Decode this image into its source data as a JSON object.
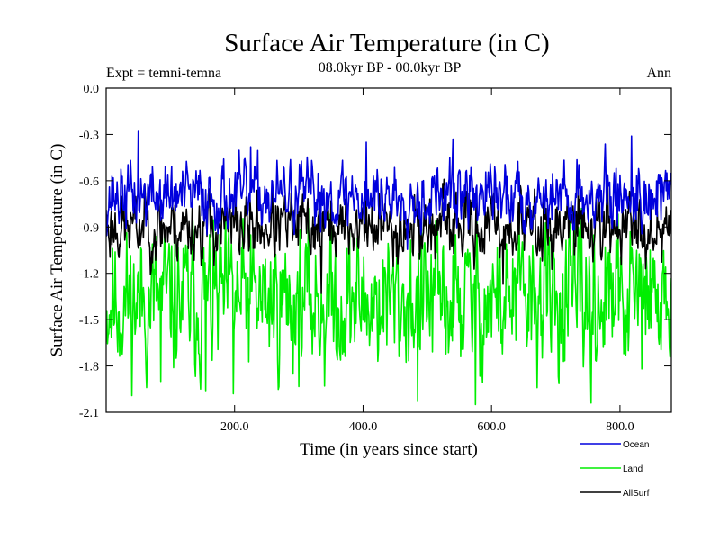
{
  "chart_data": {
    "type": "line",
    "title": "Surface Air Temperature (in C)",
    "subtitle": "08.0kyr BP - 00.0kyr BP",
    "left_label": "Expt = temni-temna",
    "right_label": "Ann",
    "xlabel": "Time (in years since start)",
    "ylabel": "Surface Air Temperature (in C)",
    "xlim": [
      0,
      880
    ],
    "ylim": [
      -2.1,
      0.0
    ],
    "x_ticks": [
      200,
      400,
      600,
      800
    ],
    "x_tick_labels": [
      "200.0",
      "400.0",
      "600.0",
      "800.0"
    ],
    "y_ticks": [
      0.0,
      -0.3,
      -0.6,
      -0.9,
      -1.2,
      -1.5,
      -1.8,
      -2.1
    ],
    "y_tick_labels": [
      "0.0",
      "-0.3",
      "-0.6",
      "-0.9",
      "-1.2",
      "-1.5",
      "-1.8",
      "-2.1"
    ],
    "legend_position": "below-right",
    "series": [
      {
        "name": "Land",
        "color": "#00ee00",
        "mean": -1.38,
        "amplitude": 0.22,
        "min": -2.06,
        "max": -0.78,
        "seed": 11,
        "notable_points": [
          [
            85,
            -1.9
          ],
          [
            155,
            -1.96
          ],
          [
            198,
            -1.98
          ],
          [
            340,
            -1.93
          ],
          [
            485,
            -2.03
          ],
          [
            575,
            -2.05
          ],
          [
            755,
            -2.04
          ]
        ]
      },
      {
        "name": "AllSurf",
        "color": "#000000",
        "mean": -0.9,
        "amplitude": 0.1,
        "min": -1.35,
        "max": -0.55,
        "seed": 23,
        "notable_points": [
          [
            60,
            -0.62
          ],
          [
            335,
            -1.33
          ],
          [
            405,
            -0.58
          ],
          [
            618,
            -1.27
          ],
          [
            735,
            -0.64
          ]
        ]
      },
      {
        "name": "Ocean",
        "color": "#0000dd",
        "mean": -0.7,
        "amplitude": 0.1,
        "min": -1.1,
        "max": -0.27,
        "seed": 37,
        "notable_points": [
          [
            50,
            -0.28
          ],
          [
            225,
            -0.38
          ],
          [
            405,
            -0.35
          ],
          [
            540,
            -0.33
          ],
          [
            818,
            -0.31
          ]
        ]
      }
    ]
  }
}
